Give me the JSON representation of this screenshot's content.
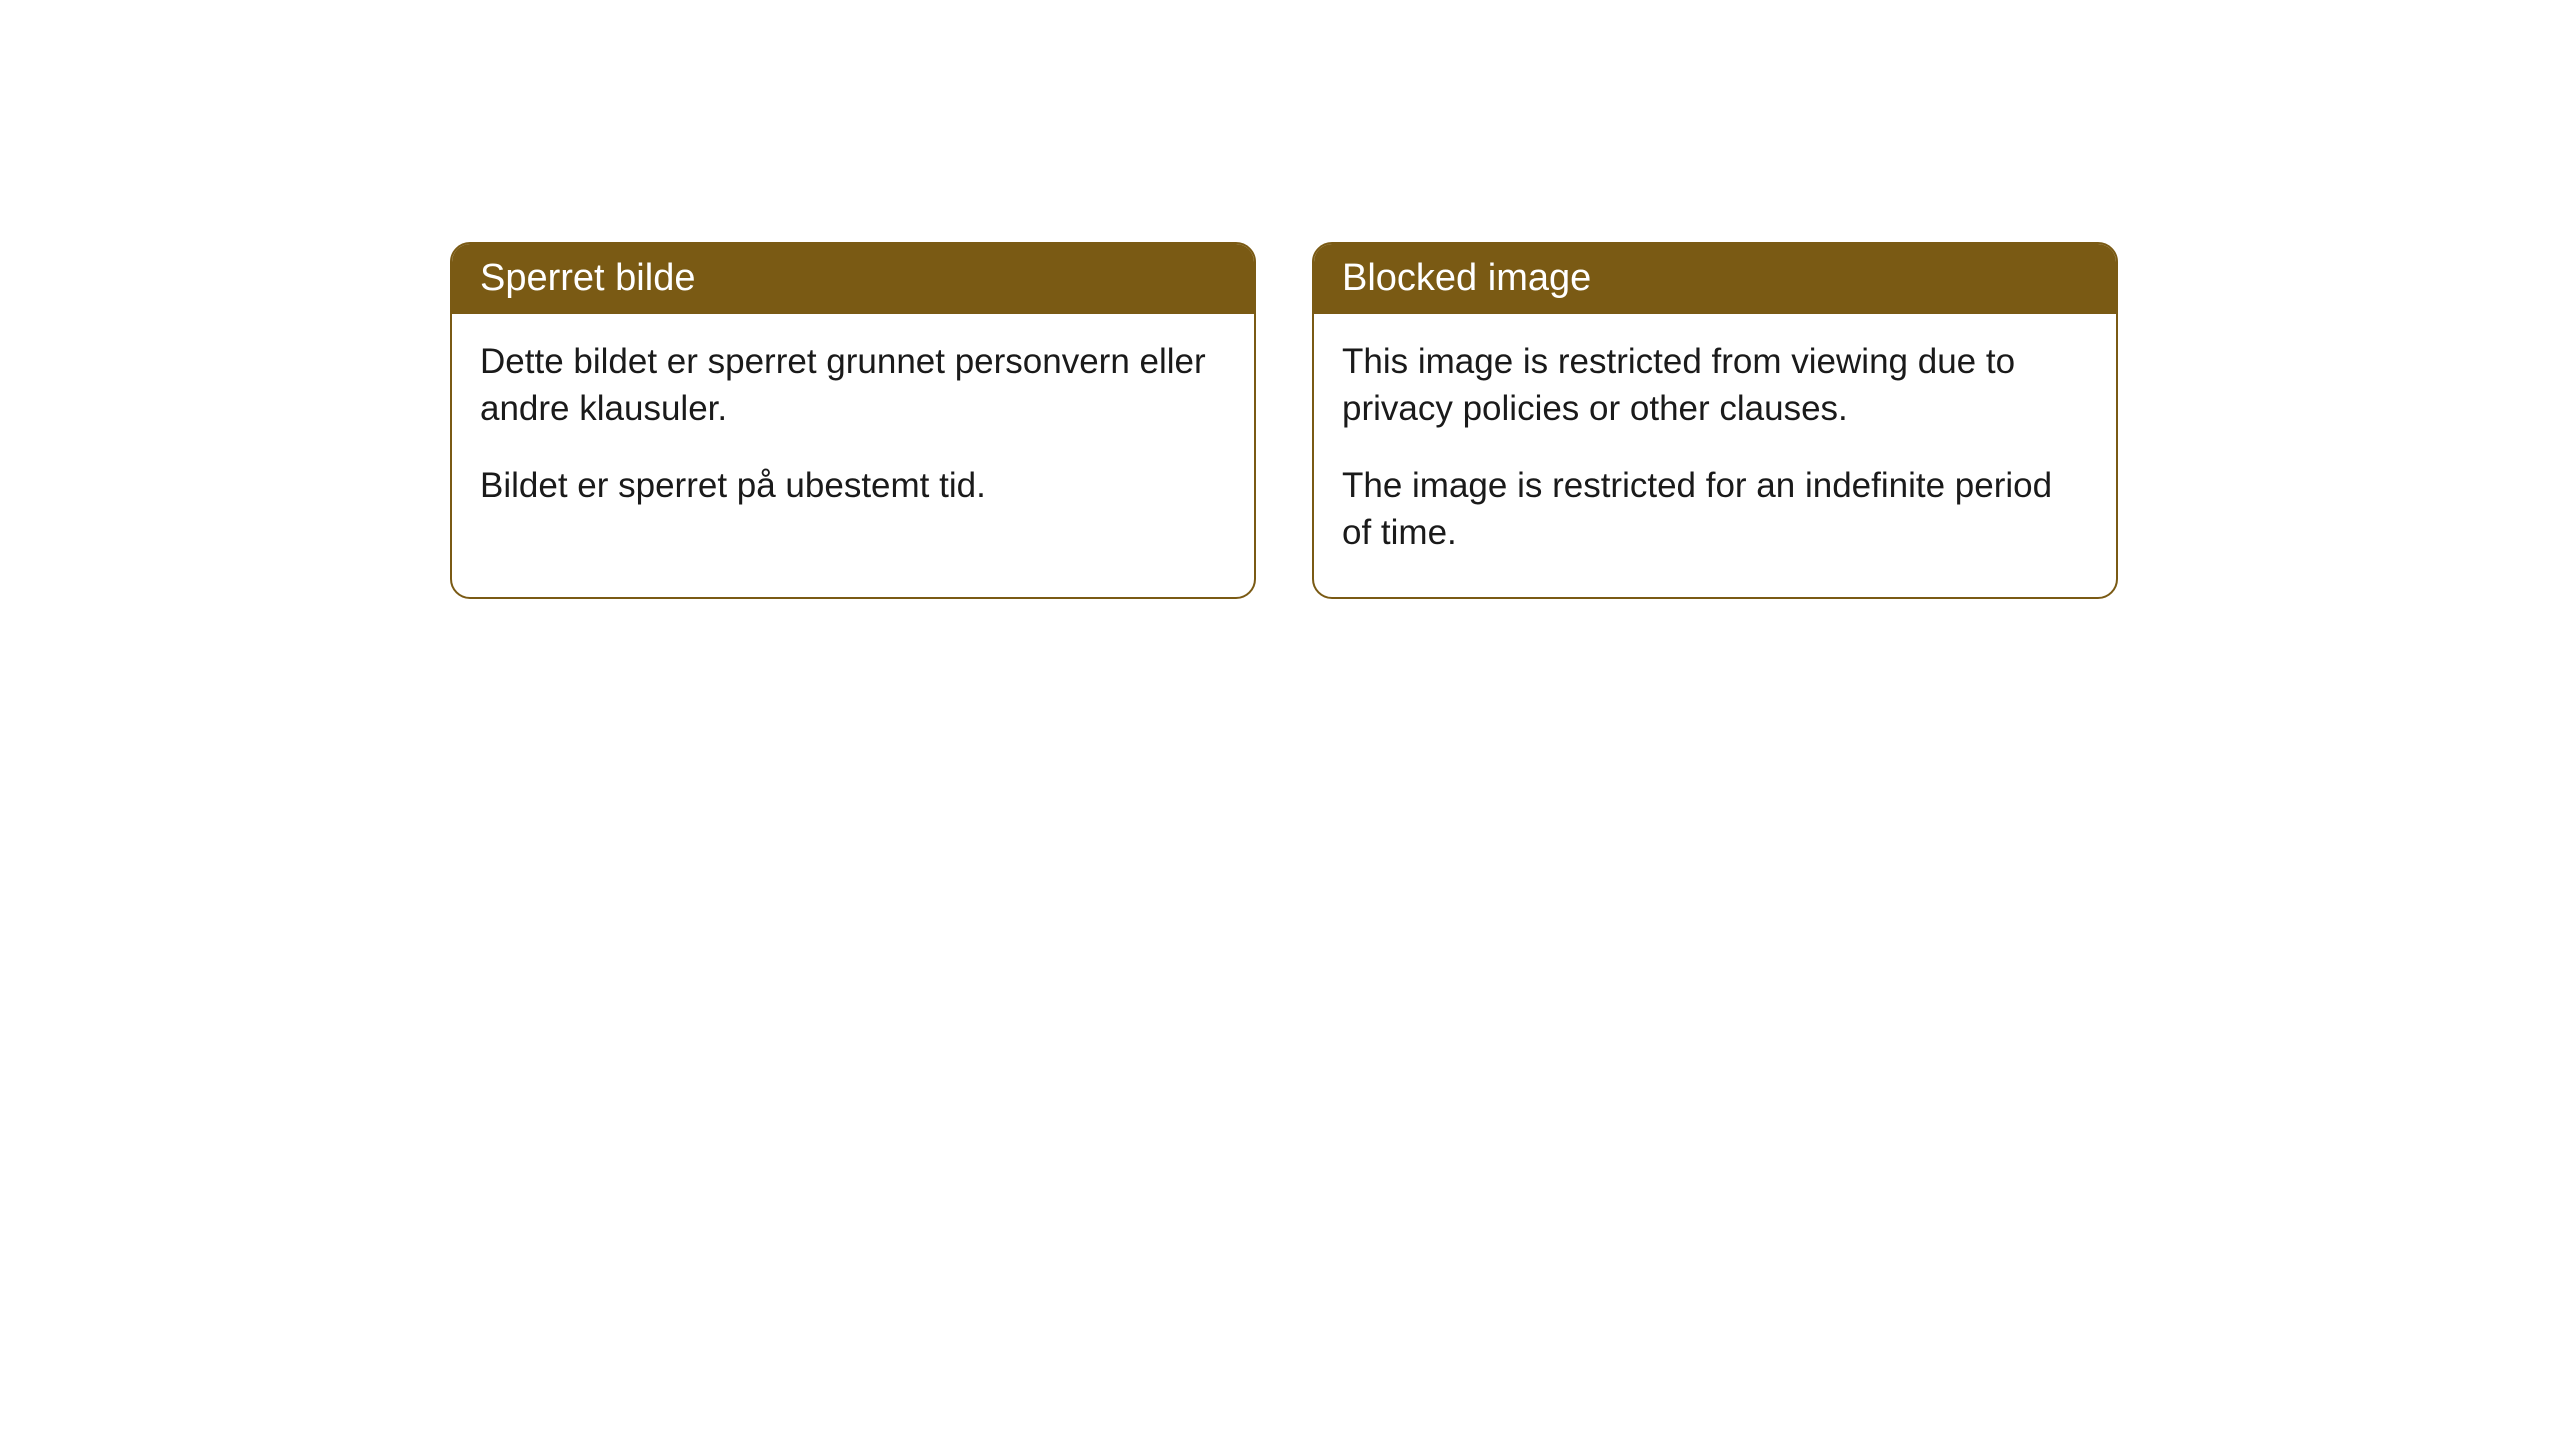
{
  "cards": [
    {
      "title": "Sperret bilde",
      "paragraph1": "Dette bildet er sperret grunnet personvern eller andre klausuler.",
      "paragraph2": "Bildet er sperret på ubestemt tid."
    },
    {
      "title": "Blocked image",
      "paragraph1": "This image is restricted from viewing due to privacy policies or other clauses.",
      "paragraph2": "The image is restricted for an indefinite period of time."
    }
  ],
  "styling": {
    "header_bg_color": "#7a5a14",
    "header_text_color": "#ffffff",
    "body_text_color": "#1a1a1a",
    "border_color": "#7a5a14",
    "card_bg_color": "#ffffff",
    "header_fontsize": 38,
    "body_fontsize": 35,
    "border_radius": 20
  }
}
